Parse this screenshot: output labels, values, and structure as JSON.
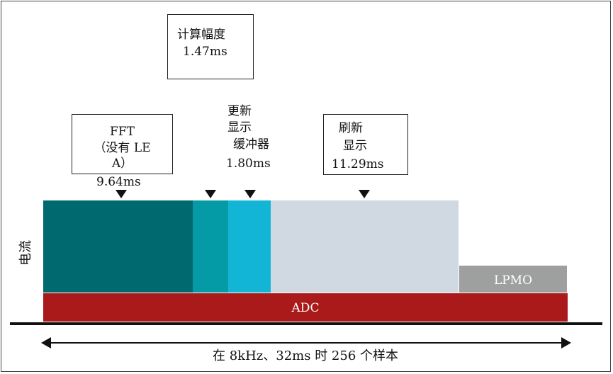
{
  "colors": {
    "fft": "#00686f",
    "update_buffer_a": "#049aa6",
    "update_buffer_b": "#13b5d6",
    "refresh": "#d0d8e1",
    "lpmo": "#9ea0a0",
    "adc": "#aa1a1b"
  },
  "labels": {
    "calc_amp_title": "计算幅度",
    "calc_amp_time": "1.47ms",
    "fft_line1": "FFT",
    "fft_line2": "（没有 LE",
    "fft_line3": "A）",
    "fft_time": "9.64ms",
    "update_line1": "更新",
    "update_line2": "显示",
    "update_line3": "缓冲器",
    "update_time": "1.80ms",
    "refresh_line1": "刷新",
    "refresh_line2": "显示",
    "refresh_time": "11.29ms",
    "current_axis": "电流",
    "adc": "ADC",
    "lpmo": "LPMO",
    "timeline": "在 8kHz、32ms 时 256 个样本"
  }
}
